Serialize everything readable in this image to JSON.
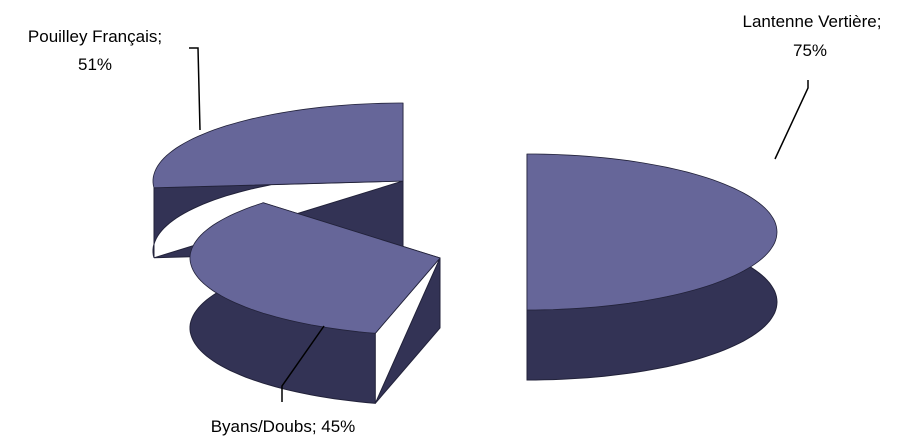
{
  "chart_data": {
    "type": "pie",
    "style": "3d-exploded",
    "slices": [
      {
        "name": "Lantenne Vertière",
        "value": 75,
        "label_line1": "Lantenne Vertière;",
        "label_line2": "75%"
      },
      {
        "name": "Byans/Doubs",
        "value": 45,
        "label_line1": "Byans/Doubs; 45%"
      },
      {
        "name": "Pouilley Français",
        "value": 51,
        "label_line1": "Pouilley Français;",
        "label_line2": "51%"
      }
    ],
    "colors": {
      "top": "#666699",
      "side": "#333355",
      "edge": "#22223a"
    },
    "legend": "none"
  }
}
